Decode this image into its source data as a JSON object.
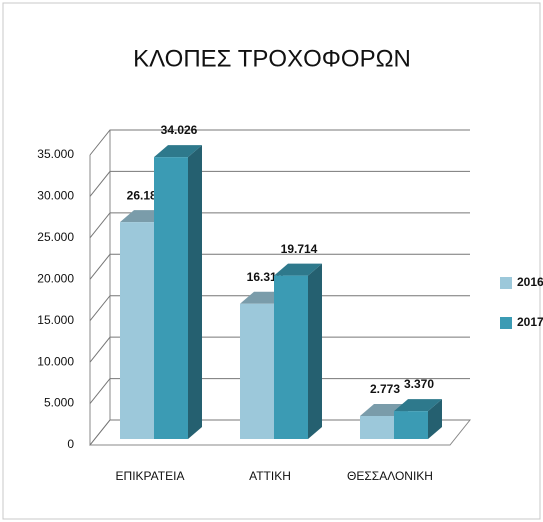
{
  "chart_data": {
    "type": "bar3d",
    "title": "ΚΛΟΠΕΣ ΤΡΟΧΟΦΟΡΩΝ",
    "categories": [
      "ΕΠΙΚΡΑΤΕΙΑ",
      "ΑΤΤΙΚΗ",
      "ΘΕΣΣΑΛΟΝΙΚΗ"
    ],
    "series": [
      {
        "name": "2016",
        "color": "#9cc8da",
        "values": [
          26180,
          16319,
          2773
        ],
        "value_labels": [
          "26.180",
          "16.319",
          "2.773"
        ]
      },
      {
        "name": "2017",
        "color": "#3b9bb4",
        "values": [
          34026,
          19714,
          3370
        ],
        "value_labels": [
          "34.026",
          "19.714",
          "3.370"
        ]
      }
    ],
    "ylim": [
      0,
      35000
    ],
    "yticks": [
      0,
      {
        "value": 5000,
        "label": "5.000"
      },
      {
        "value": 10000,
        "label": "10.000"
      },
      {
        "value": 15000,
        "label": "15.000"
      },
      {
        "value": 20000,
        "label": "20.000"
      },
      {
        "value": 25000,
        "label": "25.000"
      },
      {
        "value": 30000,
        "label": "30.000"
      },
      {
        "value": 35000,
        "label": "35.000"
      }
    ],
    "grid": true,
    "legend": "right"
  }
}
